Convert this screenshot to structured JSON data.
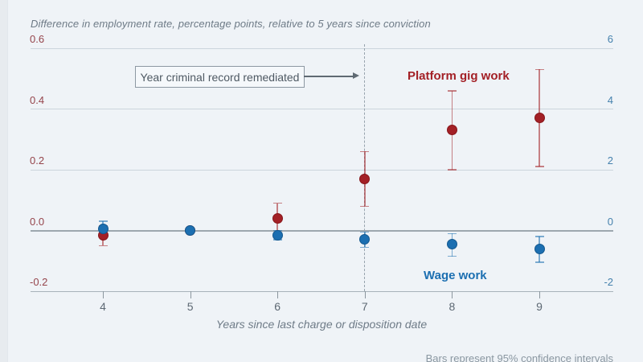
{
  "chart_data": {
    "type": "scatter",
    "title": "Difference in employment rate, percentage points, relative to 5 years since conviction",
    "xlabel": "Years since last charge or disposition date",
    "caption": "Bars represent 95% confidence intervals",
    "grid": true,
    "x_ticks": [
      4,
      5,
      6,
      7,
      8,
      9
    ],
    "left_axis": {
      "color": "#95444B",
      "range": [
        -0.2,
        0.6
      ],
      "ticks": [
        {
          "label": "0.6",
          "value": 0.6
        },
        {
          "label": "0.4",
          "value": 0.4
        },
        {
          "label": "0.2",
          "value": 0.2
        },
        {
          "label": "0.0",
          "value": 0.0
        },
        {
          "label": "-0.2",
          "value": -0.2
        }
      ]
    },
    "right_axis": {
      "color": "#4581AD",
      "range": [
        -2,
        6
      ],
      "ticks": [
        {
          "label": "6",
          "value": 6
        },
        {
          "label": "4",
          "value": 4
        },
        {
          "label": "2",
          "value": 2
        },
        {
          "label": "0",
          "value": 0
        },
        {
          "label": "-2",
          "value": -2
        }
      ]
    },
    "reference_line": {
      "x": 7,
      "label": "Year criminal record remediated"
    },
    "series": [
      {
        "name": "Platform gig work",
        "color": "#A32026",
        "point_edge": "#871519",
        "x": [
          4,
          5,
          6,
          7,
          8,
          9
        ],
        "y": [
          -0.015,
          0.0,
          0.04,
          0.17,
          0.33,
          0.37
        ],
        "ci_low": [
          -0.05,
          0.0,
          -0.02,
          0.08,
          0.2,
          0.21
        ],
        "ci_high": [
          0.015,
          0.0,
          0.09,
          0.26,
          0.46,
          0.53
        ]
      },
      {
        "name": "Wage work",
        "color": "#1C6FB1",
        "point_edge": "#14588F",
        "x": [
          4,
          5,
          6,
          7,
          8,
          9
        ],
        "y": [
          0.005,
          0.0,
          -0.015,
          -0.03,
          -0.045,
          -0.06
        ],
        "ci_low": [
          -0.02,
          0.0,
          -0.03,
          -0.055,
          -0.085,
          -0.105
        ],
        "ci_high": [
          0.03,
          0.0,
          0.0,
          -0.005,
          -0.01,
          -0.02
        ]
      }
    ]
  }
}
